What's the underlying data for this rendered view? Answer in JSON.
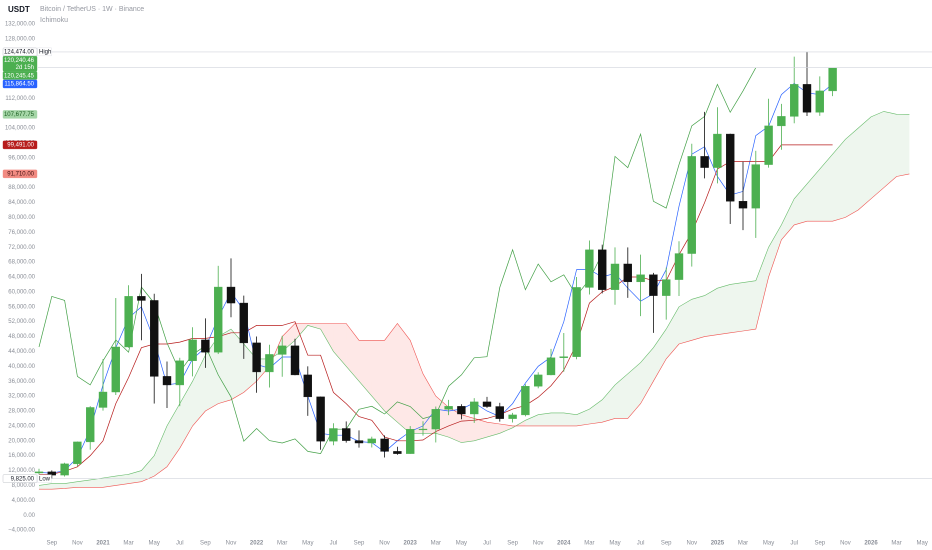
{
  "header": {
    "currency": "USDT",
    "symbol": "Bitcoin / TetherUS · 1W · Binance",
    "indicator": "Ichimoku"
  },
  "chart_data": {
    "type": "candlestick",
    "x": [
      null,
      "Sep",
      null,
      "Nov",
      null,
      "2021",
      null,
      "Mar",
      null,
      "May",
      null,
      "Jul",
      null,
      "Sep",
      null,
      "Nov",
      null,
      "2022",
      null,
      "Mar",
      null,
      "May",
      null,
      "Jul",
      null,
      "Sep",
      null,
      "Nov",
      null,
      "2023",
      null,
      "Mar",
      null,
      "May",
      null,
      "Jul",
      null,
      "Sep",
      null,
      "Nov",
      null,
      "2024",
      null,
      "Mar",
      null,
      "May",
      null,
      "Jul",
      null,
      "Sep",
      null,
      "Nov",
      null,
      "2025",
      null,
      "Mar",
      null,
      "May",
      null,
      "Jul",
      null,
      "Sep",
      null,
      "Nov",
      null,
      "2026",
      null,
      "Mar",
      null,
      "May"
    ],
    "open": [
      11350,
      11650,
      10780,
      13800,
      19700,
      28950,
      33100,
      45200,
      58800,
      57700,
      37300,
      35000,
      41500,
      47100,
      43800,
      61300,
      57000,
      46300,
      38500,
      43200,
      45500,
      37700,
      31800,
      19900,
      23300,
      20050,
      19400,
      20500,
      17150,
      16550,
      23100,
      23150,
      28450,
      29250,
      27200,
      30450,
      29200,
      25950,
      26950,
      34650,
      37700,
      42300,
      42600,
      61200,
      71300,
      60600,
      67500,
      62700,
      64600,
      59000,
      63300,
      70300,
      96400,
      93400,
      102400,
      84350,
      82500,
      94200,
      104600,
      107150,
      115750,
      108250,
      114000,
      null,
      null,
      null,
      null,
      null,
      null,
      null
    ],
    "high": [
      12470,
      12050,
      14100,
      19800,
      29300,
      41950,
      58350,
      61800,
      64850,
      59500,
      41300,
      42300,
      50500,
      52900,
      67000,
      69000,
      59000,
      48000,
      45800,
      48200,
      47400,
      40000,
      31900,
      24700,
      25200,
      22800,
      21100,
      21450,
      18400,
      23950,
      25250,
      29200,
      31000,
      29800,
      31450,
      31800,
      30200,
      27500,
      35200,
      38400,
      44700,
      48950,
      64000,
      73800,
      72700,
      71950,
      71950,
      70000,
      65100,
      66500,
      73600,
      99800,
      108350,
      109600,
      102500,
      95000,
      97900,
      111900,
      110500,
      123200,
      124474,
      117900,
      120300,
      null,
      null,
      null,
      null,
      null,
      null,
      null
    ],
    "low": [
      11000,
      9825,
      10400,
      13200,
      17600,
      28100,
      32300,
      45000,
      47000,
      30000,
      28800,
      29300,
      37300,
      39600,
      43300,
      53200,
      42000,
      32900,
      34300,
      37200,
      37600,
      26700,
      17600,
      18800,
      19500,
      18150,
      18200,
      15500,
      16250,
      16500,
      21400,
      19550,
      26900,
      25800,
      24800,
      28850,
      25150,
      24900,
      26550,
      34100,
      37600,
      38550,
      41900,
      59300,
      59600,
      56550,
      58400,
      53500,
      49000,
      52550,
      58900,
      66800,
      90500,
      89150,
      78250,
      76600,
      74500,
      93400,
      98200,
      105300,
      107250,
      107300,
      112600,
      null,
      null,
      null,
      null,
      null,
      null,
      null
    ],
    "close": [
      11650,
      10780,
      13800,
      19700,
      28950,
      33100,
      45200,
      58800,
      57700,
      37300,
      35000,
      41500,
      47100,
      43800,
      61300,
      57000,
      46300,
      38500,
      43200,
      45500,
      37700,
      31800,
      19900,
      23300,
      20050,
      19400,
      20500,
      17150,
      16550,
      23100,
      23150,
      28450,
      29250,
      27200,
      30450,
      29200,
      25950,
      26950,
      34650,
      37700,
      42300,
      42600,
      61200,
      71300,
      60600,
      67500,
      62700,
      64600,
      59000,
      63300,
      70300,
      96400,
      93400,
      102400,
      84350,
      82500,
      94200,
      104600,
      107150,
      115750,
      108250,
      114000,
      120240.46,
      null,
      null,
      null,
      null,
      null,
      null,
      null
    ],
    "up_color": "#4caf50",
    "down_color": "#111111",
    "series": [
      {
        "color": "#2962ff",
        "values": [
          11500,
          11300,
          12000,
          15500,
          23000,
          35000,
          45000,
          53000,
          56000,
          47000,
          35000,
          35500,
          42000,
          45000,
          53000,
          60000,
          55000,
          40500,
          39500,
          42500,
          42500,
          32000,
          22000,
          21500,
          21500,
          19800,
          19500,
          17000,
          20000,
          22500,
          24000,
          28500,
          28000,
          28500,
          30200,
          28000,
          26500,
          30000,
          35500,
          40000,
          42500,
          52000,
          66000,
          66000,
          64000,
          65000,
          61000,
          57500,
          59500,
          66000,
          83000,
          97000,
          99000,
          91000,
          86000,
          87000,
          102000,
          104500,
          113000,
          116000,
          113500,
          113000,
          115864.5,
          null,
          null,
          null,
          null,
          null,
          null,
          null
        ]
      },
      {
        "color": "#b71c1c",
        "values": [
          11000,
          11000,
          11800,
          13000,
          16000,
          20000,
          30000,
          37000,
          45000,
          46000,
          46000,
          46500,
          47500,
          47500,
          48000,
          49000,
          49000,
          51000,
          51000,
          51000,
          52000,
          43000,
          43000,
          33000,
          30000,
          26500,
          25500,
          21000,
          20000,
          20000,
          20200,
          22500,
          24000,
          25300,
          25500,
          26000,
          27000,
          28500,
          29500,
          31700,
          34800,
          39000,
          46000,
          57000,
          60000,
          61500,
          64000,
          64000,
          63000,
          63000,
          70000,
          76000,
          84000,
          93000,
          95000,
          95000,
          95000,
          95000,
          99500,
          99500,
          99500,
          99500,
          99491,
          null,
          null,
          null,
          null,
          null,
          null,
          null
        ]
      },
      {
        "color": "#43a047",
        "values": [
          45200,
          58800,
          57700,
          37300,
          35000,
          41500,
          47100,
          43800,
          61300,
          57000,
          46300,
          38500,
          43200,
          45500,
          37700,
          31800,
          19900,
          23300,
          20050,
          19400,
          20500,
          17150,
          16550,
          23100,
          23150,
          28450,
          29250,
          27200,
          30450,
          29200,
          25950,
          26950,
          34650,
          37700,
          42300,
          42600,
          61200,
          71300,
          60600,
          67500,
          62700,
          64600,
          59000,
          63300,
          70300,
          96400,
          93400,
          102400,
          84350,
          82500,
          94200,
          104600,
          107150,
          115750,
          108250,
          114000,
          120240.46,
          null,
          null,
          null,
          null,
          null,
          null,
          null,
          null,
          null,
          null,
          null,
          null,
          null
        ]
      }
    ],
    "cloud": {
      "span_a": {
        "color": "#66bb6a",
        "values": [
          8000,
          8500,
          8500,
          9000,
          9500,
          10000,
          10500,
          11000,
          12000,
          16000,
          24000,
          30000,
          36000,
          43000,
          48000,
          50000,
          46000,
          42000,
          42000,
          44000,
          47000,
          51000,
          50000,
          44000,
          40000,
          36000,
          32000,
          28000,
          25000,
          22000,
          22000,
          22000,
          21000,
          19500,
          20000,
          21000,
          22000,
          23500,
          25500,
          27000,
          27500,
          27500,
          27000,
          28500,
          31000,
          35000,
          38000,
          41000,
          45000,
          50000,
          56000,
          58000,
          59000,
          61000,
          62000,
          62500,
          63000,
          72000,
          78000,
          85000,
          89000,
          93000,
          97000,
          101000,
          104000,
          107000,
          108500,
          107700,
          107677.75,
          null
        ]
      },
      "span_b": {
        "color": "#ef5350",
        "values": [
          7000,
          7000,
          7200,
          7500,
          7500,
          7500,
          8000,
          8500,
          9000,
          10500,
          13000,
          18000,
          24000,
          28000,
          30000,
          31000,
          33000,
          36000,
          40000,
          48000,
          51500,
          51500,
          51500,
          51500,
          51500,
          47000,
          47000,
          47000,
          51500,
          47000,
          38000,
          32000,
          29000,
          27000,
          26000,
          25000,
          24500,
          24000,
          24000,
          24000,
          24000,
          24000,
          24000,
          24500,
          25000,
          26000,
          26000,
          30000,
          36000,
          42000,
          46000,
          47000,
          48000,
          48500,
          49000,
          49500,
          50000,
          64000,
          74000,
          78000,
          79000,
          79000,
          79000,
          80000,
          82000,
          85000,
          88000,
          91000,
          91710,
          null
        ]
      },
      "fill_up": "rgba(67,160,71,0.09)",
      "fill_down": "rgba(244,67,54,0.12)"
    },
    "ylim": [
      -8000,
      136000
    ],
    "yticks": [
      {
        "value": -4000,
        "label": "−4,000.00"
      },
      {
        "value": 0,
        "label": "0.00"
      },
      {
        "value": 4000,
        "label": "4,000.00"
      },
      {
        "value": 8000,
        "label": "8,000.00"
      },
      {
        "value": 12000,
        "label": "12,000.00"
      },
      {
        "value": 16000,
        "label": "16,000.00"
      },
      {
        "value": 20000,
        "label": "20,000.00"
      },
      {
        "value": 24000,
        "label": "24,000.00"
      },
      {
        "value": 28000,
        "label": "28,000.00"
      },
      {
        "value": 32000,
        "label": "32,000.00"
      },
      {
        "value": 36000,
        "label": "36,000.00"
      },
      {
        "value": 40000,
        "label": "40,000.00"
      },
      {
        "value": 44000,
        "label": "44,000.00"
      },
      {
        "value": 48000,
        "label": "48,000.00"
      },
      {
        "value": 52000,
        "label": "52,000.00"
      },
      {
        "value": 56000,
        "label": "56,000.00"
      },
      {
        "value": 60000,
        "label": "60,000.00"
      },
      {
        "value": 64000,
        "label": "64,000.00"
      },
      {
        "value": 68000,
        "label": "68,000.00"
      },
      {
        "value": 72000,
        "label": "72,000.00"
      },
      {
        "value": 76000,
        "label": "76,000.00"
      },
      {
        "value": 80000,
        "label": "80,000.00"
      },
      {
        "value": 84000,
        "label": "84,000.00"
      },
      {
        "value": 88000,
        "label": "88,000.00"
      },
      {
        "value": 92000,
        "label": "92,000.00"
      },
      {
        "value": 96000,
        "label": "96,000.00"
      },
      {
        "value": 100000,
        "label": "100,000.00"
      },
      {
        "value": 104000,
        "label": "104,000.00"
      },
      {
        "value": 108000,
        "label": "108,000.00"
      },
      {
        "value": 112000,
        "label": "112,000.00"
      },
      {
        "value": 116000,
        "label": "116,000.00"
      },
      {
        "value": 120000,
        "label": "120,000.00"
      },
      {
        "value": 124000,
        "label": "124,000.00"
      },
      {
        "value": 128000,
        "label": "128,000.00"
      },
      {
        "value": 132000,
        "label": "132,000.00"
      }
    ],
    "price_labels": [
      {
        "value": 124474,
        "label": "124,474.00",
        "tag": "High",
        "color": "#ffffff",
        "text_color": "#131722",
        "line": true
      },
      {
        "value": 120240.46,
        "label": "120,240.46",
        "countdown": "2d 15h",
        "color": "#4caf50",
        "text_color": "#ffffff",
        "line": true
      },
      {
        "value": 120245.45,
        "label": "120,245.45",
        "color": "#4caf50",
        "text_color": "#ffffff"
      },
      {
        "value": 115864.5,
        "label": "115,864.50",
        "color": "#2962ff",
        "text_color": "#ffffff"
      },
      {
        "value": 107677.75,
        "label": "107,677.75",
        "color": "#a5d6a7",
        "text_color": "#1b5e20"
      },
      {
        "value": 99491,
        "label": "99,491.00",
        "color": "#b71c1c",
        "text_color": "#ffffff"
      },
      {
        "value": 91710,
        "label": "91,710.00",
        "color": "#f28b82",
        "text_color": "#3e0e0e"
      },
      {
        "value": 9825,
        "label": "9,825.00",
        "tag": "Low",
        "color": "#ffffff",
        "text_color": "#131722",
        "line": true
      }
    ]
  }
}
